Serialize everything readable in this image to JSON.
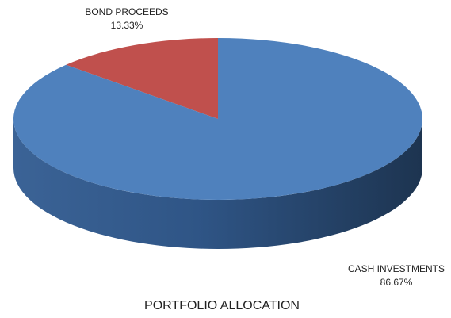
{
  "chart_data": {
    "type": "pie",
    "title": "PORTFOLIO ALLOCATION",
    "categories": [
      "BOND PROCEEDS",
      "CASH INVESTMENTS"
    ],
    "values": [
      13.33,
      86.67
    ],
    "value_labels": [
      "13.33%",
      "86.67%"
    ],
    "colors": [
      "#c0504d",
      "#4f81bd"
    ]
  }
}
